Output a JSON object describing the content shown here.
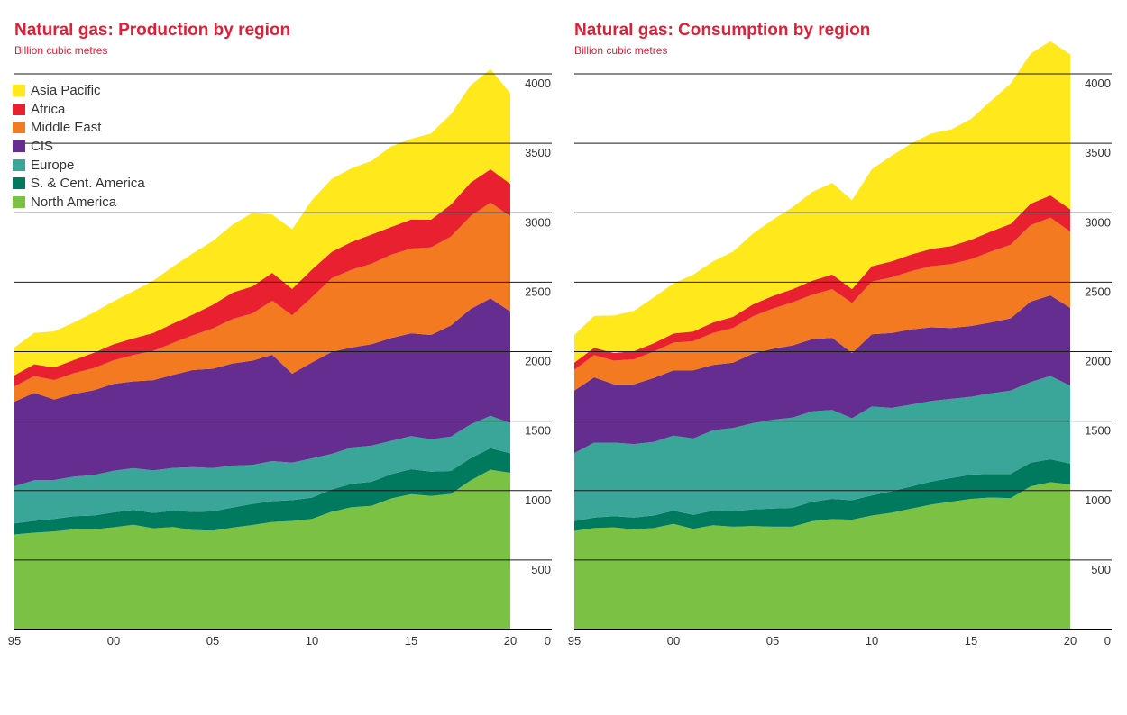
{
  "colors": {
    "Asia Pacific": "#ffe81c",
    "Africa": "#e8202f",
    "Middle East": "#f47a22",
    "CIS": "#662d91",
    "Europe": "#3aa69a",
    "S. & Cent. America": "#007a5e",
    "North America": "#7bc143"
  },
  "chart_data": [
    {
      "type": "area",
      "stacked": true,
      "title": "Natural gas: Production by region",
      "subtitle": "Billion cubic metres",
      "x_tick_labels": [
        "95",
        "00",
        "05",
        "10",
        "15",
        "20"
      ],
      "y_tick_labels": [
        "0",
        "500",
        "1000",
        "1500",
        "2000",
        "2500",
        "3000",
        "3500",
        "4000"
      ],
      "xlim": [
        1995,
        2020
      ],
      "ylim": [
        0,
        4000
      ],
      "y_axis_side": "right",
      "legend": [
        "Asia Pacific",
        "Africa",
        "Middle East",
        "CIS",
        "Europe",
        "S. & Cent. America",
        "North America"
      ],
      "legend_position": "top-left",
      "x": [
        1995,
        1996,
        1997,
        1998,
        1999,
        2000,
        2001,
        2002,
        2003,
        2004,
        2005,
        2006,
        2007,
        2008,
        2009,
        2010,
        2011,
        2012,
        2013,
        2014,
        2015,
        2016,
        2017,
        2018,
        2019,
        2020
      ],
      "series": [
        {
          "name": "North America",
          "values": [
            684,
            697,
            706,
            720,
            720,
            736,
            753,
            729,
            737,
            716,
            712,
            733,
            752,
            774,
            781,
            796,
            848,
            880,
            890,
            943,
            974,
            961,
            976,
            1073,
            1150,
            1128
          ]
        },
        {
          "name": "S. & Cent. America",
          "values": [
            80,
            85,
            90,
            95,
            100,
            107,
            108,
            110,
            118,
            130,
            138,
            145,
            152,
            150,
            150,
            153,
            160,
            168,
            173,
            175,
            180,
            175,
            165,
            160,
            155,
            140
          ]
        },
        {
          "name": "Europe",
          "values": [
            266,
            292,
            280,
            285,
            292,
            300,
            300,
            306,
            308,
            322,
            312,
            302,
            281,
            288,
            270,
            283,
            256,
            262,
            260,
            240,
            238,
            234,
            247,
            244,
            233,
            218
          ]
        },
        {
          "name": "CIS",
          "values": [
            610,
            630,
            580,
            595,
            610,
            625,
            625,
            650,
            670,
            700,
            715,
            735,
            750,
            765,
            640,
            690,
            735,
            720,
            730,
            740,
            740,
            750,
            800,
            830,
            845,
            803
          ]
        },
        {
          "name": "Middle East",
          "values": [
            110,
            120,
            140,
            150,
            160,
            170,
            190,
            210,
            230,
            250,
            290,
            320,
            340,
            390,
            420,
            470,
            530,
            560,
            580,
            600,
            610,
            630,
            640,
            670,
            690,
            687
          ]
        },
        {
          "name": "Africa",
          "values": [
            80,
            85,
            90,
            95,
            110,
            115,
            120,
            130,
            140,
            150,
            170,
            190,
            195,
            200,
            190,
            200,
            190,
            200,
            210,
            200,
            210,
            200,
            230,
            240,
            240,
            231
          ]
        },
        {
          "name": "Asia Pacific",
          "values": [
            200,
            225,
            260,
            270,
            290,
            310,
            340,
            375,
            410,
            440,
            460,
            490,
            530,
            420,
            430,
            500,
            525,
            530,
            530,
            580,
            580,
            620,
            650,
            700,
            720,
            653
          ]
        }
      ]
    },
    {
      "type": "area",
      "stacked": true,
      "title": "Natural gas: Consumption by region",
      "subtitle": "Billion cubic metres",
      "x_tick_labels": [
        "95",
        "00",
        "05",
        "10",
        "15",
        "20"
      ],
      "y_tick_labels": [
        "0",
        "500",
        "1000",
        "1500",
        "2000",
        "2500",
        "3000",
        "3500",
        "4000"
      ],
      "xlim": [
        1995,
        2020
      ],
      "ylim": [
        0,
        4000
      ],
      "y_axis_side": "right",
      "x": [
        1995,
        1996,
        1997,
        1998,
        1999,
        2000,
        2001,
        2002,
        2003,
        2004,
        2005,
        2006,
        2007,
        2008,
        2009,
        2010,
        2011,
        2012,
        2013,
        2014,
        2015,
        2016,
        2017,
        2018,
        2019,
        2020
      ],
      "series": [
        {
          "name": "North America",
          "values": [
            710,
            730,
            735,
            720,
            730,
            760,
            725,
            750,
            740,
            745,
            740,
            740,
            780,
            795,
            790,
            820,
            840,
            870,
            900,
            920,
            940,
            950,
            945,
            1030,
            1060,
            1045
          ]
        },
        {
          "name": "S. & Cent. America",
          "values": [
            70,
            75,
            80,
            85,
            90,
            95,
            100,
            105,
            110,
            120,
            130,
            135,
            140,
            145,
            140,
            145,
            155,
            160,
            165,
            170,
            175,
            170,
            175,
            170,
            165,
            150
          ]
        },
        {
          "name": "Europe",
          "values": [
            490,
            540,
            530,
            530,
            530,
            540,
            550,
            580,
            600,
            620,
            640,
            650,
            650,
            640,
            590,
            640,
            600,
            590,
            580,
            570,
            560,
            580,
            600,
            580,
            600,
            560
          ]
        },
        {
          "name": "CIS",
          "values": [
            450,
            470,
            420,
            430,
            460,
            470,
            490,
            470,
            470,
            500,
            510,
            520,
            520,
            520,
            470,
            520,
            540,
            540,
            530,
            510,
            510,
            510,
            520,
            580,
            580,
            560
          ]
        },
        {
          "name": "Middle East",
          "values": [
            150,
            160,
            170,
            180,
            190,
            200,
            210,
            230,
            250,
            270,
            290,
            310,
            320,
            350,
            360,
            380,
            400,
            420,
            440,
            460,
            480,
            510,
            530,
            550,
            560,
            550
          ]
        },
        {
          "name": "Africa",
          "values": [
            50,
            52,
            55,
            58,
            60,
            65,
            70,
            75,
            80,
            85,
            90,
            95,
            100,
            105,
            100,
            110,
            115,
            120,
            125,
            130,
            140,
            145,
            150,
            155,
            160,
            160
          ]
        },
        {
          "name": "Asia Pacific",
          "values": [
            200,
            230,
            270,
            290,
            330,
            360,
            410,
            440,
            470,
            510,
            550,
            590,
            640,
            660,
            640,
            700,
            760,
            800,
            830,
            840,
            870,
            940,
            1010,
            1080,
            1110,
            1115
          ]
        }
      ]
    }
  ]
}
